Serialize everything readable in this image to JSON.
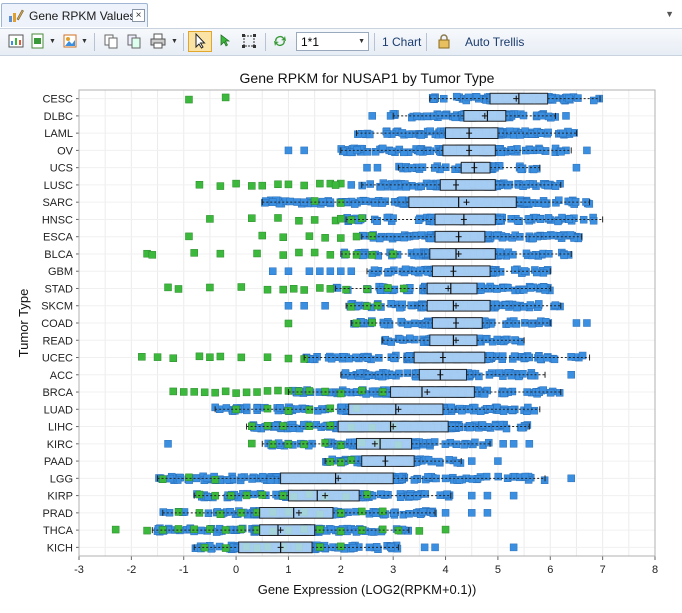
{
  "tab": {
    "title": "Gene RPKM Values",
    "close_glyph": "×"
  },
  "toolbar": {
    "zoom_value": "1*1",
    "chart_count_label": "1 Chart",
    "auto_trellis_label": "Auto Trellis"
  },
  "colors": {
    "normal_point": "#3b8fe0",
    "tumor_point": "#3cb83c",
    "box_fill": "#b9d8f7"
  },
  "chart_data": {
    "type": "box",
    "title": "Gene RPKM for NUSAP1 by Tumor Type",
    "xlabel": "Gene Expression (LOG2(RPKM+0.1))",
    "ylabel": "Tumor Type",
    "xlim": [
      -3,
      8
    ],
    "xticks": [
      "-3",
      "-2",
      "-1",
      "0",
      "1",
      "2",
      "3",
      "4",
      "5",
      "6",
      "7",
      "8"
    ],
    "grid": true,
    "series": [
      {
        "name": "CESC",
        "min": 3.7,
        "q1": 4.85,
        "median": 5.4,
        "mean": 5.35,
        "q3": 5.95,
        "max": 6.95,
        "spread": 0.5,
        "green": [
          -0.9,
          -0.2
        ],
        "blue_out": []
      },
      {
        "name": "DLBC",
        "min": 3.0,
        "q1": 4.35,
        "median": 4.8,
        "mean": 4.75,
        "q3": 5.15,
        "max": 6.1,
        "spread": 0.5,
        "green": [],
        "blue_out": [
          2.6,
          2.95,
          6.3
        ]
      },
      {
        "name": "LAML",
        "min": 2.3,
        "q1": 4.0,
        "median": 4.45,
        "mean": 4.45,
        "q3": 5.0,
        "max": 6.5,
        "spread": 0.6,
        "green": [],
        "blue_out": []
      },
      {
        "name": "OV",
        "min": 2.0,
        "q1": 3.95,
        "median": 4.45,
        "mean": 4.45,
        "q3": 4.95,
        "max": 6.4,
        "spread": 0.6,
        "green": [],
        "blue_out": [
          1.0,
          1.3,
          6.7
        ]
      },
      {
        "name": "UCS",
        "min": 3.1,
        "q1": 4.3,
        "median": 4.55,
        "mean": 4.55,
        "q3": 4.85,
        "max": 5.8,
        "spread": 0.3,
        "green": [],
        "blue_out": [
          2.5,
          2.7,
          6.5
        ]
      },
      {
        "name": "LUSC",
        "min": 2.4,
        "q1": 3.9,
        "median": 4.2,
        "mean": 4.2,
        "q3": 4.95,
        "max": 6.2,
        "spread": 0.6,
        "green": [
          -0.7,
          -0.3,
          0.0,
          0.3,
          0.5,
          0.8,
          1.0,
          1.3,
          1.6,
          1.8,
          2.0,
          1.9
        ],
        "blue_out": [
          2.2
        ]
      },
      {
        "name": "SARC",
        "min": 0.5,
        "q1": 3.3,
        "median": 4.25,
        "mean": 4.4,
        "q3": 5.35,
        "max": 6.75,
        "spread": 0.8,
        "green": [
          1.5,
          2.0
        ],
        "blue_out": [
          0.7,
          1.3,
          1.8,
          2.1
        ]
      },
      {
        "name": "HNSC",
        "min": 2.1,
        "q1": 3.8,
        "median": 4.35,
        "mean": 4.35,
        "q3": 4.95,
        "max": 7.0,
        "spread": 0.7,
        "green": [
          -0.5,
          0.3,
          0.8,
          1.2,
          1.5,
          1.9,
          2.0,
          2.2,
          2.4
        ],
        "blue_out": []
      },
      {
        "name": "ESCA",
        "min": 2.4,
        "q1": 3.8,
        "median": 4.25,
        "mean": 4.25,
        "q3": 4.75,
        "max": 6.6,
        "spread": 0.6,
        "green": [
          -0.9,
          0.5,
          0.9,
          1.4,
          1.7,
          2.0,
          2.3,
          2.6
        ],
        "blue_out": []
      },
      {
        "name": "BLCA",
        "min": 2.0,
        "q1": 3.7,
        "median": 4.2,
        "mean": 4.25,
        "q3": 4.95,
        "max": 6.4,
        "spread": 0.7,
        "green": [
          -1.7,
          -1.6,
          -0.8,
          -0.3,
          0.4,
          0.9,
          1.2,
          1.5,
          1.8,
          2.1,
          2.3,
          2.6,
          3.0
        ],
        "blue_out": []
      },
      {
        "name": "GBM",
        "min": 2.5,
        "q1": 3.75,
        "median": 4.15,
        "mean": 4.15,
        "q3": 4.85,
        "max": 6.0,
        "spread": 0.6,
        "green": [],
        "blue_out": [
          0.7,
          1.0,
          1.4,
          1.6,
          1.8,
          2.0,
          2.2
        ]
      },
      {
        "name": "STAD",
        "min": 1.9,
        "q1": 3.65,
        "median": 4.1,
        "mean": 4.05,
        "q3": 4.6,
        "max": 6.0,
        "spread": 0.6,
        "green": [
          -1.3,
          -1.1,
          -0.5,
          0.1,
          0.6,
          0.9,
          1.1,
          1.3,
          1.6,
          1.8,
          2.1,
          2.5,
          2.9,
          3.2
        ],
        "blue_out": []
      },
      {
        "name": "SKCM",
        "min": 2.1,
        "q1": 3.65,
        "median": 4.15,
        "mean": 4.2,
        "q3": 4.85,
        "max": 6.2,
        "spread": 0.6,
        "green": [
          2.2,
          2.5,
          2.7
        ],
        "blue_out": [
          1.0,
          1.3,
          1.7
        ]
      },
      {
        "name": "COAD",
        "min": 2.2,
        "q1": 3.75,
        "median": 4.2,
        "mean": 4.2,
        "q3": 4.7,
        "max": 6.0,
        "spread": 0.6,
        "green": [
          1.0,
          2.3,
          2.6
        ],
        "blue_out": [
          6.5,
          6.7
        ]
      },
      {
        "name": "READ",
        "min": 2.8,
        "q1": 3.7,
        "median": 4.15,
        "mean": 4.2,
        "q3": 4.6,
        "max": 5.5,
        "spread": 0.4,
        "green": [],
        "blue_out": []
      },
      {
        "name": "UCEC",
        "min": 1.3,
        "q1": 3.4,
        "median": 3.95,
        "mean": 3.95,
        "q3": 4.75,
        "max": 6.75,
        "spread": 0.8,
        "green": [
          -1.8,
          -1.5,
          -1.2,
          -0.7,
          -0.5,
          -0.3,
          0.1,
          0.6,
          1.0,
          1.3
        ],
        "blue_out": []
      },
      {
        "name": "ACC",
        "min": 2.0,
        "q1": 3.5,
        "median": 3.9,
        "mean": 3.9,
        "q3": 4.4,
        "max": 5.9,
        "spread": 0.5,
        "green": [],
        "blue_out": [
          6.4
        ]
      },
      {
        "name": "BRCA",
        "min": 1.0,
        "q1": 2.95,
        "median": 3.55,
        "mean": 3.65,
        "q3": 4.55,
        "max": 6.2,
        "spread": 0.8,
        "green": [
          -1.2,
          -1.0,
          -0.8,
          -0.6,
          -0.4,
          -0.2,
          0.0,
          0.2,
          0.4,
          0.6,
          0.8,
          1.0,
          1.2,
          1.4,
          1.7,
          2.0,
          2.4,
          2.8
        ],
        "blue_out": []
      },
      {
        "name": "LUAD",
        "min": -0.4,
        "q1": 2.15,
        "median": 3.05,
        "mean": 3.1,
        "q3": 3.95,
        "max": 5.8,
        "spread": 0.8,
        "green": [
          0.0,
          0.6,
          1.0,
          1.4,
          1.8,
          2.3
        ],
        "blue_out": []
      },
      {
        "name": "LIHC",
        "min": 0.2,
        "q1": 1.95,
        "median": 2.95,
        "mean": 3.0,
        "q3": 4.05,
        "max": 5.6,
        "spread": 0.9,
        "green": [
          0.3,
          0.6,
          0.9,
          1.4,
          1.8,
          2.2,
          2.6,
          3.0
        ],
        "blue_out": []
      },
      {
        "name": "KIRC",
        "min": 0.5,
        "q1": 2.3,
        "median": 2.75,
        "mean": 2.65,
        "q3": 3.35,
        "max": 4.85,
        "spread": 0.6,
        "green": [
          0.3,
          0.7,
          1.0,
          1.3,
          1.7,
          2.0,
          2.4,
          2.7,
          3.1
        ],
        "blue_out": [
          -1.3,
          5.1,
          5.3,
          5.6
        ]
      },
      {
        "name": "PAAD",
        "min": 1.7,
        "q1": 2.4,
        "median": 2.85,
        "mean": 2.85,
        "q3": 3.4,
        "max": 4.3,
        "spread": 0.4,
        "green": [
          1.8,
          2.0,
          2.2
        ],
        "blue_out": [
          4.5,
          5.0
        ]
      },
      {
        "name": "LGG",
        "min": -1.5,
        "q1": 0.85,
        "median": 1.9,
        "mean": 1.95,
        "q3": 3.0,
        "max": 5.9,
        "spread": 1.0,
        "green": [
          -1.4,
          -0.9,
          -0.4
        ],
        "blue_out": [
          6.4
        ]
      },
      {
        "name": "KIRP",
        "min": -0.8,
        "q1": 1.0,
        "median": 1.55,
        "mean": 1.7,
        "q3": 2.35,
        "max": 4.1,
        "spread": 0.6,
        "green": [
          -0.7,
          -0.4,
          -0.1,
          0.2,
          0.5,
          0.9,
          1.1,
          1.4,
          1.7,
          2.1,
          2.5
        ],
        "blue_out": [
          4.5,
          4.8,
          5.3
        ]
      },
      {
        "name": "PRAD",
        "min": -1.4,
        "q1": 0.45,
        "median": 1.1,
        "mean": 1.2,
        "q3": 1.85,
        "max": 3.8,
        "spread": 0.6,
        "green": [
          -1.1,
          -0.7,
          -0.3,
          0.1,
          0.4,
          0.7,
          1.0,
          1.3,
          1.6,
          2.0,
          2.4,
          2.8
        ],
        "blue_out": [
          4.0,
          4.5,
          4.8
        ]
      },
      {
        "name": "THCA",
        "min": -1.6,
        "q1": 0.45,
        "median": 0.8,
        "mean": 0.85,
        "q3": 1.5,
        "max": 3.3,
        "spread": 0.5,
        "green": [
          -2.3,
          -1.7,
          -1.4,
          -1.1,
          -0.8,
          -0.5,
          -0.2,
          0.1,
          0.4,
          0.7,
          1.0,
          1.3,
          1.6,
          2.0,
          2.4,
          2.8,
          3.1,
          3.5,
          4.0
        ],
        "blue_out": []
      },
      {
        "name": "KICH",
        "min": -0.8,
        "q1": 0.05,
        "median": 0.85,
        "mean": 0.85,
        "q3": 1.45,
        "max": 3.1,
        "spread": 0.5,
        "green": [
          -0.6,
          -0.2,
          0.2,
          0.4,
          0.6,
          0.9,
          1.2,
          1.6,
          2.0
        ],
        "blue_out": [
          3.6,
          3.8,
          5.3
        ]
      }
    ]
  }
}
